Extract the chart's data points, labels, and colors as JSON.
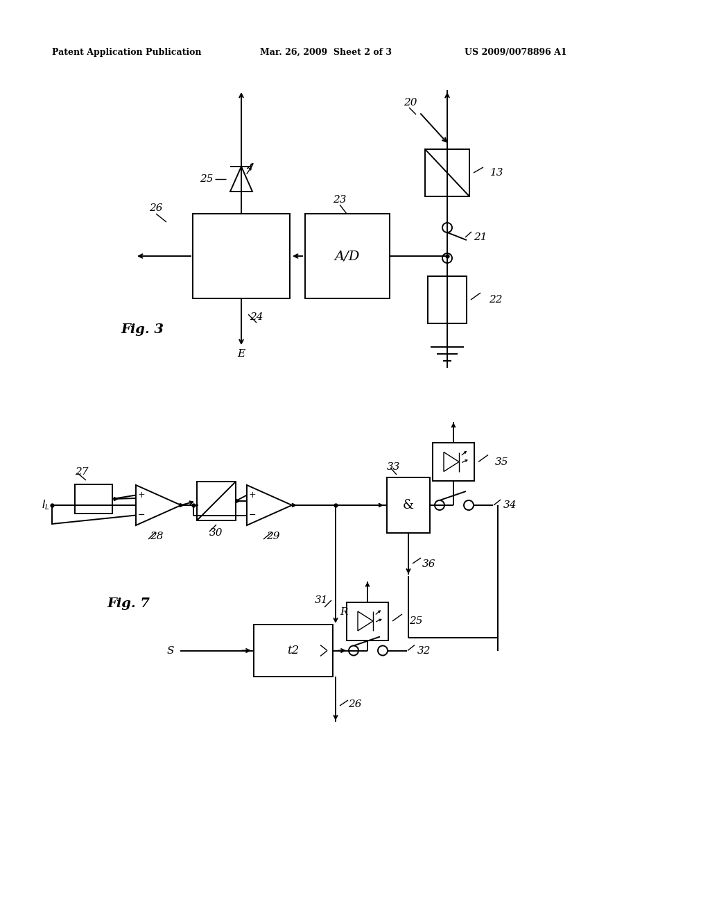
{
  "title_left": "Patent Application Publication",
  "title_mid": "Mar. 26, 2009  Sheet 2 of 3",
  "title_right": "US 2009/0078896 A1",
  "fig3_label": "Fig. 3",
  "fig7_label": "Fig. 7",
  "bg_color": "#ffffff"
}
